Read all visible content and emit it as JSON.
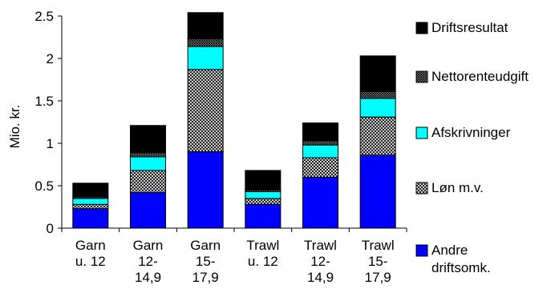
{
  "chart_data": {
    "type": "bar",
    "stacked": true,
    "title": "",
    "xlabel": "",
    "ylabel": "Mio. kr.",
    "ylim": [
      0,
      2.5
    ],
    "yticks": [
      "0",
      "0.5",
      "1",
      "1.5",
      "2",
      "2.5"
    ],
    "grid": false,
    "legend_position": "right",
    "categories": [
      [
        "Garn",
        "u. 12"
      ],
      [
        "Garn",
        "12-",
        "14,9"
      ],
      [
        "Garn",
        "15-",
        "17,9"
      ],
      [
        "Trawl",
        "u. 12"
      ],
      [
        "Trawl",
        "12-",
        "14,9"
      ],
      [
        "Trawl",
        "15-",
        "17,9"
      ]
    ],
    "series": [
      {
        "name": "Andre driftsomk.",
        "label_lines": [
          "Andre",
          "driftsomk."
        ],
        "color": "#0000ff",
        "pattern": "solid",
        "values": [
          0.23,
          0.42,
          0.9,
          0.28,
          0.6,
          0.86
        ]
      },
      {
        "name": "Løn m.v.",
        "label_lines": [
          "Løn m.v."
        ],
        "color": "#808080",
        "pattern": "crosshatch",
        "values": [
          0.05,
          0.26,
          0.97,
          0.07,
          0.23,
          0.45
        ]
      },
      {
        "name": "Afskrivninger",
        "label_lines": [
          "Afskrivninger"
        ],
        "color": "#00ffff",
        "pattern": "solid",
        "values": [
          0.07,
          0.16,
          0.27,
          0.08,
          0.15,
          0.22
        ]
      },
      {
        "name": "Nettorenteudgift",
        "label_lines": [
          "Nettorenteudgift"
        ],
        "color": "#c0c0c0",
        "pattern": "dense",
        "values": [
          0.02,
          0.05,
          0.09,
          0.02,
          0.05,
          0.08
        ]
      },
      {
        "name": "Driftsresultat",
        "label_lines": [
          "Driftsresultat"
        ],
        "color": "#000000",
        "pattern": "solid",
        "values": [
          0.16,
          0.32,
          0.31,
          0.23,
          0.21,
          0.42
        ]
      }
    ],
    "legend_order": [
      4,
      3,
      2,
      1,
      0
    ]
  }
}
